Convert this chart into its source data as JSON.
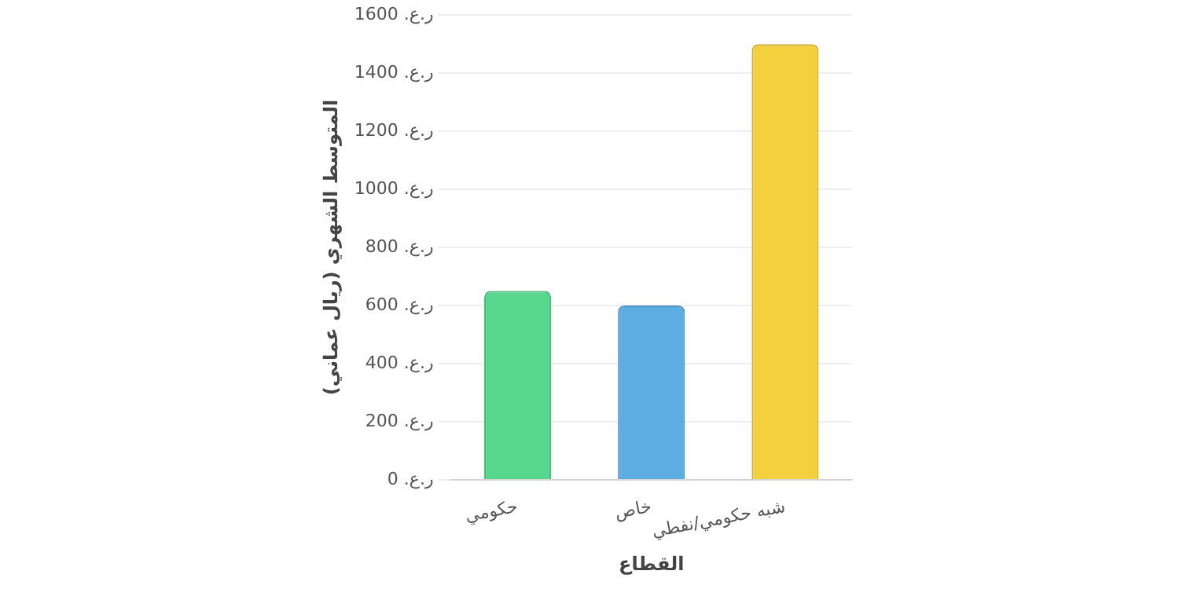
{
  "chart_data": {
    "type": "bar",
    "xlabel": "القطاع",
    "ylabel": "المتوسط الشهري (ريال عماني)",
    "categories": [
      "حكومي",
      "خاص",
      "شبه حكومي/نفطي"
    ],
    "values": [
      650,
      600,
      1500
    ],
    "colors": [
      "#58d68d",
      "#5dade2",
      "#f4d03f"
    ],
    "ylim": [
      0,
      1600
    ],
    "yticks": [
      {
        "value": 0,
        "label": "ر.ع. 0"
      },
      {
        "value": 200,
        "label": "ر.ع. 200"
      },
      {
        "value": 400,
        "label": "ر.ع. 400"
      },
      {
        "value": 600,
        "label": "ر.ع. 600"
      },
      {
        "value": 800,
        "label": "ر.ع. 800"
      },
      {
        "value": 1000,
        "label": "ر.ع. 1000"
      },
      {
        "value": 1200,
        "label": "ر.ع. 1200"
      },
      {
        "value": 1400,
        "label": "ر.ع. 1400"
      },
      {
        "value": 1600,
        "label": "ر.ع. 1600"
      }
    ],
    "grid": "y",
    "legend": false
  }
}
